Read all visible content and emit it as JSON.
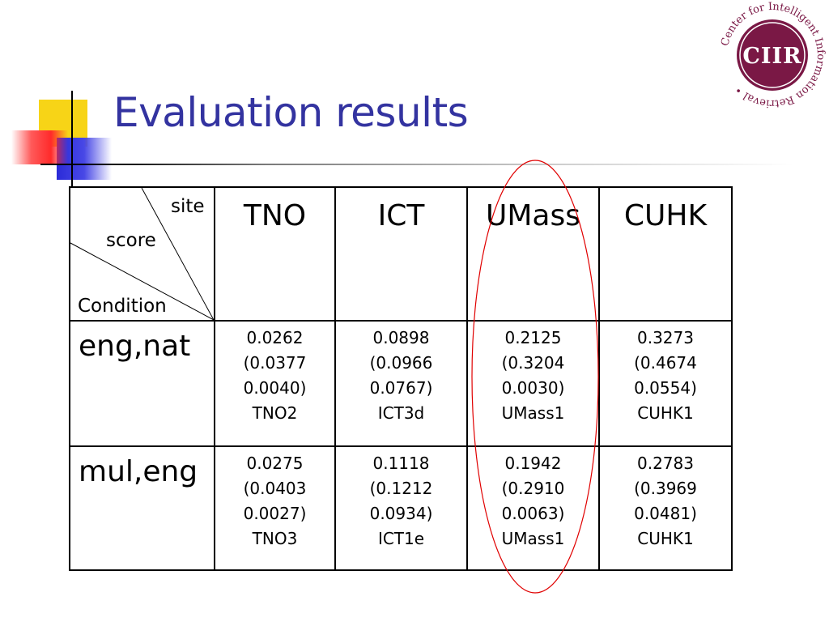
{
  "title": "Evaluation results",
  "logo": {
    "text": "CIIR",
    "ring_text": "Center for Intelligent Information Retrieval •",
    "color": "#7a1845"
  },
  "table": {
    "corner": {
      "site": "site",
      "score": "score",
      "condition": "Condition"
    },
    "columns": [
      "TNO",
      "ICT",
      "UMass",
      "CUHK"
    ],
    "rows": [
      {
        "label": "eng,nat",
        "cells": [
          [
            "0.0262",
            "(0.0377 0.0040)",
            "TNO2"
          ],
          [
            "0.0898 (0.0966",
            "0.0767)",
            "ICT3d"
          ],
          [
            "0.2125 (0.3204 0.0030)",
            "UMass1"
          ],
          [
            "0.3273",
            "(0.4674 0.0554)",
            "CUHK1"
          ]
        ]
      },
      {
        "label": "mul,eng",
        "cells": [
          [
            "0.0275",
            "(0.0403 0.0027)",
            "TNO3"
          ],
          [
            "0.1118",
            "(0.1212",
            "0.0934)",
            "ICT1e"
          ],
          [
            "0.1942",
            "(0.2910 0.0063)",
            "UMass1"
          ],
          [
            "0.2783",
            "(0.3969 0.0481)",
            "CUHK1"
          ]
        ]
      }
    ]
  },
  "colors": {
    "title": "#3333a0",
    "oval": "#e00000",
    "logo": "#7a1845"
  }
}
